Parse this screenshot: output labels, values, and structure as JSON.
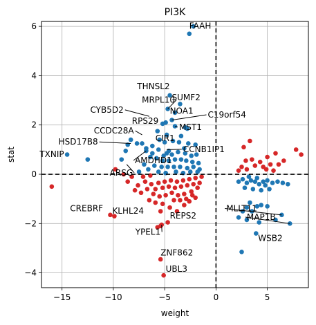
{
  "chart_data": {
    "type": "scatter",
    "title": "PI3K",
    "xlabel": "weight",
    "ylabel": "stat",
    "xlim": [
      -17,
      9
    ],
    "ylim": [
      -4.6,
      6.2
    ],
    "x_ticks": [
      -15,
      -10,
      -5,
      0,
      5
    ],
    "y_ticks": [
      -4,
      -2,
      0,
      2,
      4,
      6
    ],
    "x_tick_labels": [
      "−15",
      "−10",
      "−5",
      "0",
      "5"
    ],
    "y_tick_labels": [
      "−4",
      "−2",
      "0",
      "2",
      "4",
      "6"
    ],
    "grid": true,
    "reference_lines": {
      "x": 0,
      "y": 0
    },
    "colors": {
      "positive": "#1f77b4",
      "negative": "#d62728",
      "reference": "#000000",
      "grid": "#b0b0b0"
    },
    "series": [
      {
        "color": "#1f77b4",
        "points": [
          [
            -2.6,
            5.7
          ],
          [
            -2.2,
            6.0
          ],
          [
            -4.5,
            3.2
          ],
          [
            -3.5,
            2.85
          ],
          [
            -4.7,
            2.65
          ],
          [
            -4.0,
            2.5
          ],
          [
            -4.3,
            2.2
          ],
          [
            -5.2,
            2.05
          ],
          [
            -4.0,
            1.95
          ],
          [
            -3.0,
            1.9
          ],
          [
            -2.8,
            1.85
          ],
          [
            -4.8,
            1.6
          ],
          [
            -3.4,
            1.55
          ],
          [
            -5.5,
            1.4
          ],
          [
            -6.2,
            1.15
          ],
          [
            -5.6,
            1.0
          ],
          [
            -4.6,
            0.95
          ],
          [
            -4.8,
            0.85
          ],
          [
            -3.0,
            0.85
          ],
          [
            -6.8,
            0.95
          ],
          [
            -8.8,
            0.95
          ],
          [
            -9.2,
            0.6
          ],
          [
            -8.3,
            1.4
          ],
          [
            -8.6,
            1.2
          ],
          [
            -7.7,
            1.25
          ],
          [
            -7.2,
            1.25
          ],
          [
            -6.8,
            1.05
          ],
          [
            -14.5,
            0.8
          ],
          [
            -12.5,
            0.6
          ],
          [
            -5.0,
            1.3
          ],
          [
            -4.2,
            1.35
          ],
          [
            -3.6,
            1.3
          ],
          [
            -2.7,
            1.25
          ],
          [
            -2.0,
            1.2
          ],
          [
            -6.4,
            0.7
          ],
          [
            -5.8,
            0.65
          ],
          [
            -5.2,
            0.55
          ],
          [
            -4.6,
            0.55
          ],
          [
            -4.0,
            0.6
          ],
          [
            -3.4,
            0.6
          ],
          [
            -2.9,
            0.55
          ],
          [
            -2.3,
            0.5
          ],
          [
            -1.7,
            0.45
          ],
          [
            -6.0,
            0.35
          ],
          [
            -5.3,
            0.3
          ],
          [
            -4.7,
            0.3
          ],
          [
            -4.1,
            0.3
          ],
          [
            -3.5,
            0.3
          ],
          [
            -2.8,
            0.25
          ],
          [
            -2.2,
            0.3
          ],
          [
            -1.6,
            0.2
          ],
          [
            -7.0,
            0.4
          ],
          [
            -6.6,
            0.2
          ],
          [
            -7.5,
            0.1
          ],
          [
            -5.6,
            0.1
          ],
          [
            -4.9,
            0.05
          ],
          [
            -3.9,
            0.1
          ],
          [
            -3.2,
            0.05
          ],
          [
            -2.5,
            0.1
          ],
          [
            -1.8,
            0.1
          ],
          [
            -6.2,
            0.85
          ],
          [
            -5.1,
            0.75
          ],
          [
            -4.3,
            0.8
          ],
          [
            -3.7,
            0.9
          ],
          [
            -3.1,
            1.05
          ],
          [
            -2.4,
            0.75
          ],
          [
            -1.9,
            0.8
          ],
          [
            -5.7,
            1.75
          ],
          [
            -4.9,
            2.1
          ],
          [
            2.2,
            -0.3
          ],
          [
            2.6,
            -0.2
          ],
          [
            3.0,
            -0.35
          ],
          [
            3.4,
            -0.25
          ],
          [
            3.8,
            -0.3
          ],
          [
            4.2,
            -0.4
          ],
          [
            4.6,
            -0.3
          ],
          [
            5.0,
            -0.25
          ],
          [
            5.5,
            -0.35
          ],
          [
            6.0,
            -0.3
          ],
          [
            6.5,
            -0.35
          ],
          [
            7.0,
            -0.4
          ],
          [
            3.2,
            -0.1
          ],
          [
            4.0,
            -0.15
          ],
          [
            2.8,
            -0.55
          ],
          [
            3.6,
            -0.6
          ],
          [
            4.4,
            -0.65
          ],
          [
            5.2,
            -0.6
          ],
          [
            4.8,
            -0.45
          ],
          [
            3.0,
            -1.35
          ],
          [
            4.0,
            -1.3
          ],
          [
            5.0,
            -1.3
          ],
          [
            2.2,
            -1.75
          ],
          [
            3.5,
            -1.5
          ],
          [
            4.2,
            -1.95
          ],
          [
            6.4,
            -1.65
          ],
          [
            7.2,
            -2.0
          ],
          [
            3.9,
            -2.4
          ],
          [
            5.8,
            -1.85
          ],
          [
            2.6,
            -1.5
          ],
          [
            3.3,
            -1.15
          ],
          [
            4.4,
            -1.25
          ],
          [
            2.5,
            -3.15
          ],
          [
            3.0,
            -1.85
          ]
        ]
      },
      {
        "color": "#d62728",
        "points": [
          [
            -16.0,
            -0.5
          ],
          [
            -10.3,
            -1.65
          ],
          [
            -9.9,
            -1.7
          ],
          [
            -9.0,
            0.0
          ],
          [
            -9.8,
            0.2
          ],
          [
            -5.7,
            -2.15
          ],
          [
            -5.4,
            -2.1
          ],
          [
            -5.3,
            -2.05
          ],
          [
            -4.7,
            -1.95
          ],
          [
            -5.4,
            -3.45
          ],
          [
            -5.1,
            -4.1
          ],
          [
            -5.4,
            -1.5
          ],
          [
            -4.5,
            -1.35
          ],
          [
            -3.8,
            -1.5
          ],
          [
            -3.1,
            -1.25
          ],
          [
            -2.6,
            -1.1
          ],
          [
            -2.0,
            -0.95
          ],
          [
            -6.1,
            -0.8
          ],
          [
            -5.5,
            -0.9
          ],
          [
            -4.9,
            -0.85
          ],
          [
            -4.3,
            -0.75
          ],
          [
            -3.7,
            -0.85
          ],
          [
            -3.1,
            -0.8
          ],
          [
            -2.4,
            -0.7
          ],
          [
            -1.8,
            -0.55
          ],
          [
            -7.6,
            -0.45
          ],
          [
            -6.9,
            -0.3
          ],
          [
            -6.3,
            -0.4
          ],
          [
            -5.6,
            -0.35
          ],
          [
            -5.0,
            -0.3
          ],
          [
            -4.4,
            -0.25
          ],
          [
            -3.8,
            -0.3
          ],
          [
            -3.2,
            -0.25
          ],
          [
            -2.6,
            -0.2
          ],
          [
            -2.0,
            -0.15
          ],
          [
            -1.4,
            -0.1
          ],
          [
            -8.2,
            -0.1
          ],
          [
            -7.1,
            -0.1
          ],
          [
            -6.4,
            -0.05
          ],
          [
            -7.9,
            -0.65
          ],
          [
            -6.7,
            -0.6
          ],
          [
            -5.9,
            -0.6
          ],
          [
            -5.2,
            -0.55
          ],
          [
            -4.6,
            -0.5
          ],
          [
            -4.0,
            -0.55
          ],
          [
            -3.4,
            -0.5
          ],
          [
            -2.8,
            -0.45
          ],
          [
            -2.2,
            -0.4
          ],
          [
            -1.6,
            -0.35
          ],
          [
            -8.6,
            -0.3
          ],
          [
            -7.3,
            -0.75
          ],
          [
            -6.5,
            -1.05
          ],
          [
            -5.9,
            -1.15
          ],
          [
            -5.2,
            -1.2
          ],
          [
            -4.1,
            -1.05
          ],
          [
            -3.5,
            -1.05
          ],
          [
            -2.9,
            -1.0
          ],
          [
            -2.3,
            -0.85
          ],
          [
            7.8,
            1.0
          ],
          [
            8.3,
            0.8
          ],
          [
            6.6,
            0.55
          ],
          [
            5.8,
            0.85
          ],
          [
            5.0,
            0.7
          ],
          [
            4.3,
            0.5
          ],
          [
            4.6,
            0.3
          ],
          [
            3.5,
            0.6
          ],
          [
            3.0,
            0.2
          ],
          [
            2.5,
            0.3
          ],
          [
            2.2,
            0.15
          ],
          [
            3.8,
            0.35
          ],
          [
            4.9,
            0.2
          ],
          [
            5.3,
            0.4
          ],
          [
            6.1,
            0.4
          ],
          [
            2.9,
            0.55
          ],
          [
            5.6,
            0.15
          ],
          [
            3.3,
            1.35
          ],
          [
            2.7,
            1.1
          ]
        ]
      }
    ],
    "annotations": [
      {
        "text": "FAAH",
        "x": -2.6,
        "y": 5.7,
        "tx": -2.6,
        "ty": 5.9,
        "anchor": "start",
        "arrow": false
      },
      {
        "text": "THNSL2",
        "x": -4.5,
        "y": 3.2,
        "tx": -4.5,
        "ty": 3.45,
        "anchor": "end",
        "arrow": false
      },
      {
        "text": "SUMF2",
        "x": -3.5,
        "y": 2.85,
        "tx": -4.3,
        "ty": 3.0,
        "anchor": "start",
        "arrow": false
      },
      {
        "text": "MRPL10",
        "x": -4.7,
        "y": 2.65,
        "tx": -4.0,
        "ty": 2.9,
        "anchor": "end",
        "arrow": true
      },
      {
        "text": "NOA1",
        "x": -4.0,
        "y": 2.5,
        "tx": -4.5,
        "ty": 2.45,
        "anchor": "start",
        "arrow": false
      },
      {
        "text": "CYB5D2",
        "x": -6.5,
        "y": 2.35,
        "tx": -9.0,
        "ty": 2.5,
        "anchor": "end",
        "arrow": true
      },
      {
        "text": "C19orf54",
        "x": -4.3,
        "y": 2.2,
        "tx": -0.8,
        "ty": 2.3,
        "anchor": "start",
        "arrow": true
      },
      {
        "text": "RPS29",
        "x": -5.2,
        "y": 2.05,
        "tx": -5.6,
        "ty": 2.05,
        "anchor": "end",
        "arrow": false
      },
      {
        "text": "MST1",
        "x": -4.0,
        "y": 1.95,
        "tx": -3.6,
        "ty": 1.8,
        "anchor": "start",
        "arrow": true
      },
      {
        "text": "CCDC28A",
        "x": -7.2,
        "y": 1.6,
        "tx": -8.0,
        "ty": 1.65,
        "anchor": "end",
        "arrow": true
      },
      {
        "text": "HSD17B8",
        "x": -8.3,
        "y": 1.25,
        "tx": -11.5,
        "ty": 1.2,
        "anchor": "end",
        "arrow": true
      },
      {
        "text": "CIR1",
        "x": -5.2,
        "y": 1.45,
        "tx": -5.9,
        "ty": 1.35,
        "anchor": "start",
        "arrow": false
      },
      {
        "text": "CCNB1IP1",
        "x": -4.8,
        "y": 1.0,
        "tx": -3.2,
        "ty": 0.9,
        "anchor": "start",
        "arrow": true
      },
      {
        "text": "TXNIP",
        "x": -14.5,
        "y": 0.8,
        "tx": -14.8,
        "ty": 0.7,
        "anchor": "end",
        "arrow": false
      },
      {
        "text": "AMDHD1",
        "x": -6.8,
        "y": 0.95,
        "tx": -7.9,
        "ty": 0.45,
        "anchor": "start",
        "arrow": true
      },
      {
        "text": "ARSG",
        "x": -8.7,
        "y": 0.4,
        "tx": -8.1,
        "ty": -0.05,
        "anchor": "end",
        "arrow": true
      },
      {
        "text": "CREBRF",
        "x": -10.3,
        "y": 1.65,
        "tx": -11.0,
        "ty": -1.5,
        "anchor": "end",
        "arrow": false
      },
      {
        "text": "KLHL24",
        "x": -9.9,
        "y": -1.7,
        "tx": -10.1,
        "ty": -1.6,
        "anchor": "start",
        "arrow": false
      },
      {
        "text": "MLLT11",
        "x": 6.4,
        "y": -1.65,
        "tx": 1.0,
        "ty": -1.5,
        "anchor": "start",
        "arrow": true
      },
      {
        "text": "MAP1B",
        "x": 7.2,
        "y": -2.0,
        "tx": 3.0,
        "ty": -1.85,
        "anchor": "start",
        "arrow": true
      },
      {
        "text": "REPS2",
        "x": -4.7,
        "y": -1.95,
        "tx": -4.5,
        "ty": -1.8,
        "anchor": "start",
        "arrow": false
      },
      {
        "text": "YPEL1",
        "x": -5.3,
        "y": -2.05,
        "tx": -5.4,
        "ty": -2.45,
        "anchor": "end",
        "arrow": true
      },
      {
        "text": "WSB2",
        "x": 3.9,
        "y": -2.4,
        "tx": 4.1,
        "ty": -2.7,
        "anchor": "start",
        "arrow": false
      },
      {
        "text": "ZNF862",
        "x": -5.4,
        "y": -3.45,
        "tx": -5.4,
        "ty": -3.3,
        "anchor": "start",
        "arrow": false
      },
      {
        "text": "UBL3",
        "x": -5.1,
        "y": -4.1,
        "tx": -4.9,
        "ty": -3.95,
        "anchor": "start",
        "arrow": false
      }
    ]
  }
}
